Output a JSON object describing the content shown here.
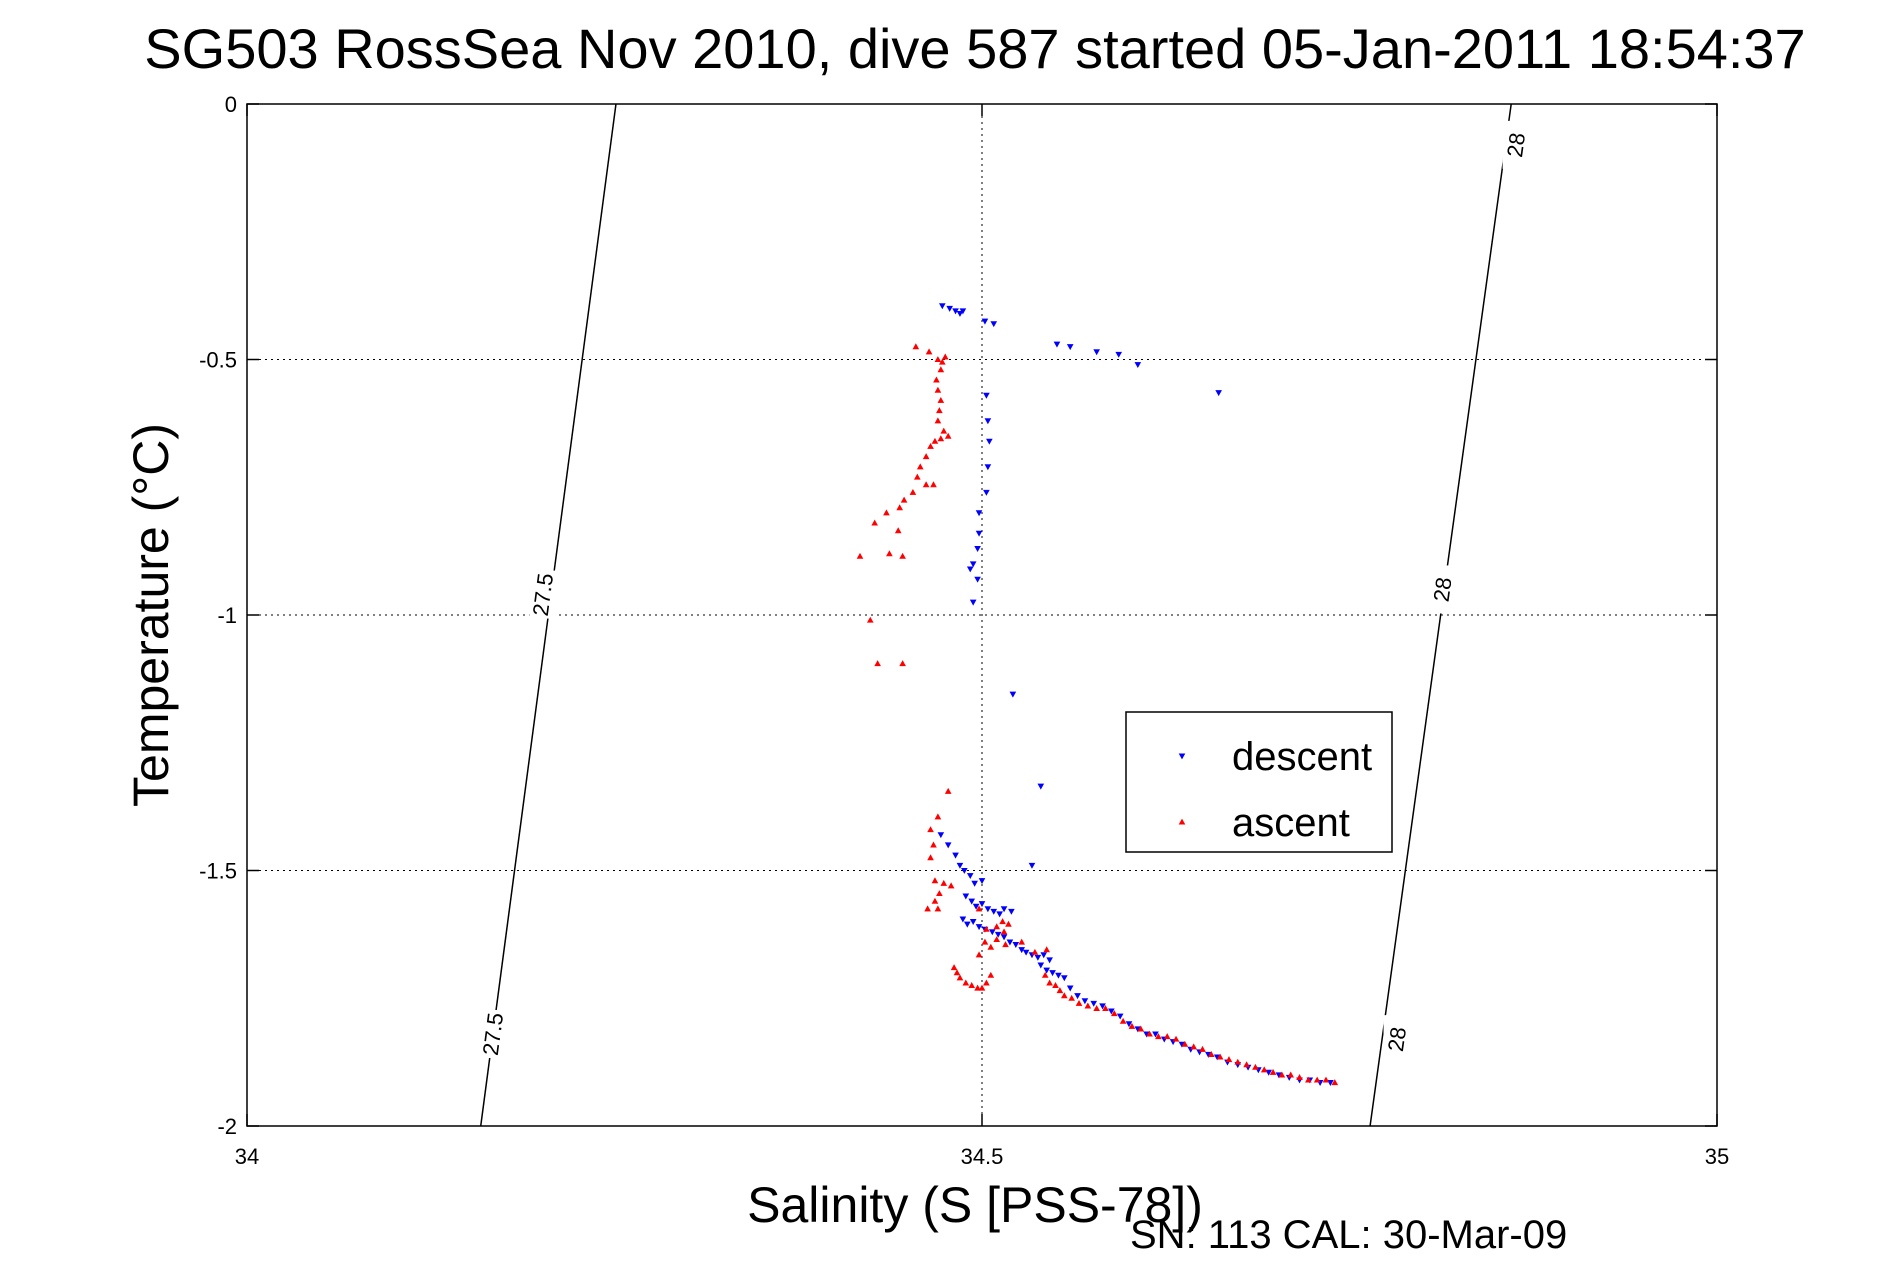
{
  "chart_data": {
    "type": "scatter",
    "title": "SG503 RossSea Nov 2010, dive 587 started 05-Jan-2011 18:54:37",
    "xlabel": "Salinity (S [PSS-78])",
    "ylabel": "Temperature (°C)",
    "xlim": [
      34,
      35
    ],
    "ylim": [
      -2,
      0
    ],
    "x_ticks": [
      "34",
      "34.5",
      "35"
    ],
    "y_ticks": [
      "0",
      "-0.5",
      "-1",
      "-1.5",
      "-2"
    ],
    "grid": true,
    "legend_position": "center-right",
    "footnote": "SN: 113  CAL: 30-Mar-09",
    "density_contours": [
      {
        "level_label": "27.5",
        "line": [
          [
            34.159,
            -2.0
          ],
          [
            34.251,
            0.0
          ]
        ],
        "labels": [
          [
            34.167,
            -1.82
          ],
          [
            34.201,
            -0.96
          ]
        ]
      },
      {
        "level_label": "28",
        "line": [
          [
            34.764,
            -2.0
          ],
          [
            34.86,
            0.0
          ]
        ],
        "labels": [
          [
            34.782,
            -1.83
          ],
          [
            34.813,
            -0.95
          ],
          [
            34.863,
            -0.08
          ]
        ]
      }
    ],
    "series": [
      {
        "name": "descent",
        "color": "#0000ff",
        "marker": "triangle-down",
        "points": [
          [
            34.473,
            -0.395
          ],
          [
            34.478,
            -0.4
          ],
          [
            34.482,
            -0.405
          ],
          [
            34.485,
            -0.41
          ],
          [
            34.487,
            -0.405
          ],
          [
            34.502,
            -0.425
          ],
          [
            34.508,
            -0.43
          ],
          [
            34.551,
            -0.47
          ],
          [
            34.56,
            -0.475
          ],
          [
            34.578,
            -0.485
          ],
          [
            34.593,
            -0.49
          ],
          [
            34.606,
            -0.51
          ],
          [
            34.661,
            -0.565
          ],
          [
            34.503,
            -0.57
          ],
          [
            34.504,
            -0.62
          ],
          [
            34.505,
            -0.66
          ],
          [
            34.504,
            -0.71
          ],
          [
            34.503,
            -0.76
          ],
          [
            34.498,
            -0.8
          ],
          [
            34.498,
            -0.84
          ],
          [
            34.497,
            -0.87
          ],
          [
            34.494,
            -0.9
          ],
          [
            34.492,
            -0.91
          ],
          [
            34.497,
            -0.93
          ],
          [
            34.494,
            -0.975
          ],
          [
            34.521,
            -1.155
          ],
          [
            34.54,
            -1.335
          ],
          [
            34.534,
            -1.49
          ],
          [
            34.472,
            -1.43
          ],
          [
            34.477,
            -1.45
          ],
          [
            34.482,
            -1.47
          ],
          [
            34.485,
            -1.49
          ],
          [
            34.488,
            -1.5
          ],
          [
            34.492,
            -1.51
          ],
          [
            34.495,
            -1.525
          ],
          [
            34.5,
            -1.52
          ],
          [
            34.489,
            -1.55
          ],
          [
            34.493,
            -1.56
          ],
          [
            34.496,
            -1.57
          ],
          [
            34.5,
            -1.565
          ],
          [
            34.504,
            -1.575
          ],
          [
            34.508,
            -1.58
          ],
          [
            34.512,
            -1.585
          ],
          [
            34.515,
            -1.575
          ],
          [
            34.52,
            -1.58
          ],
          [
            34.487,
            -1.595
          ],
          [
            34.49,
            -1.605
          ],
          [
            34.494,
            -1.6
          ],
          [
            34.498,
            -1.61
          ],
          [
            34.502,
            -1.615
          ],
          [
            34.507,
            -1.62
          ],
          [
            34.511,
            -1.625
          ],
          [
            34.515,
            -1.63
          ],
          [
            34.519,
            -1.64
          ],
          [
            34.523,
            -1.645
          ],
          [
            34.527,
            -1.655
          ],
          [
            34.53,
            -1.66
          ],
          [
            34.534,
            -1.665
          ],
          [
            34.538,
            -1.67
          ],
          [
            34.542,
            -1.665
          ],
          [
            34.546,
            -1.675
          ],
          [
            34.54,
            -1.685
          ],
          [
            34.544,
            -1.695
          ],
          [
            34.548,
            -1.7
          ],
          [
            34.552,
            -1.705
          ],
          [
            34.556,
            -1.71
          ],
          [
            34.56,
            -1.73
          ],
          [
            34.565,
            -1.745
          ],
          [
            34.57,
            -1.755
          ],
          [
            34.576,
            -1.76
          ],
          [
            34.582,
            -1.765
          ],
          [
            34.588,
            -1.775
          ],
          [
            34.594,
            -1.785
          ],
          [
            34.6,
            -1.8
          ],
          [
            34.606,
            -1.81
          ],
          [
            34.612,
            -1.82
          ],
          [
            34.618,
            -1.82
          ],
          [
            34.624,
            -1.83
          ],
          [
            34.63,
            -1.835
          ],
          [
            34.636,
            -1.84
          ],
          [
            34.642,
            -1.85
          ],
          [
            34.648,
            -1.855
          ],
          [
            34.654,
            -1.86
          ],
          [
            34.66,
            -1.865
          ],
          [
            34.667,
            -1.875
          ],
          [
            34.674,
            -1.88
          ],
          [
            34.681,
            -1.885
          ],
          [
            34.688,
            -1.89
          ],
          [
            34.695,
            -1.895
          ],
          [
            34.702,
            -1.9
          ],
          [
            34.709,
            -1.905
          ],
          [
            34.716,
            -1.91
          ],
          [
            34.723,
            -1.91
          ],
          [
            34.73,
            -1.915
          ],
          [
            34.737,
            -1.915
          ]
        ]
      },
      {
        "name": "ascent",
        "color": "#ff0000",
        "marker": "triangle-up",
        "points": [
          [
            34.455,
            -0.475
          ],
          [
            34.464,
            -0.485
          ],
          [
            34.47,
            -0.5
          ],
          [
            34.473,
            -0.505
          ],
          [
            34.475,
            -0.495
          ],
          [
            34.472,
            -0.52
          ],
          [
            34.469,
            -0.54
          ],
          [
            34.47,
            -0.56
          ],
          [
            34.472,
            -0.58
          ],
          [
            34.471,
            -0.6
          ],
          [
            34.47,
            -0.62
          ],
          [
            34.474,
            -0.64
          ],
          [
            34.477,
            -0.65
          ],
          [
            34.472,
            -0.655
          ],
          [
            34.468,
            -0.66
          ],
          [
            34.465,
            -0.67
          ],
          [
            34.462,
            -0.69
          ],
          [
            34.458,
            -0.71
          ],
          [
            34.456,
            -0.73
          ],
          [
            34.462,
            -0.745
          ],
          [
            34.467,
            -0.745
          ],
          [
            34.453,
            -0.76
          ],
          [
            34.447,
            -0.775
          ],
          [
            34.444,
            -0.79
          ],
          [
            34.435,
            -0.8
          ],
          [
            34.427,
            -0.82
          ],
          [
            34.443,
            -0.835
          ],
          [
            34.417,
            -0.885
          ],
          [
            34.437,
            -0.88
          ],
          [
            34.446,
            -0.885
          ],
          [
            34.424,
            -1.01
          ],
          [
            34.429,
            -1.095
          ],
          [
            34.446,
            -1.095
          ],
          [
            34.477,
            -1.345
          ],
          [
            34.47,
            -1.395
          ],
          [
            34.465,
            -1.42
          ],
          [
            34.467,
            -1.45
          ],
          [
            34.465,
            -1.475
          ],
          [
            34.468,
            -1.52
          ],
          [
            34.474,
            -1.525
          ],
          [
            34.479,
            -1.53
          ],
          [
            34.471,
            -1.545
          ],
          [
            34.468,
            -1.56
          ],
          [
            34.463,
            -1.575
          ],
          [
            34.47,
            -1.575
          ],
          [
            34.498,
            -1.575
          ],
          [
            34.503,
            -1.615
          ],
          [
            34.51,
            -1.61
          ],
          [
            34.514,
            -1.6
          ],
          [
            34.518,
            -1.605
          ],
          [
            34.515,
            -1.62
          ],
          [
            34.51,
            -1.635
          ],
          [
            34.502,
            -1.64
          ],
          [
            34.506,
            -1.65
          ],
          [
            34.516,
            -1.645
          ],
          [
            34.527,
            -1.64
          ],
          [
            34.498,
            -1.665
          ],
          [
            34.536,
            -1.66
          ],
          [
            34.544,
            -1.655
          ],
          [
            34.481,
            -1.69
          ],
          [
            34.483,
            -1.7
          ],
          [
            34.485,
            -1.71
          ],
          [
            34.489,
            -1.72
          ],
          [
            34.493,
            -1.725
          ],
          [
            34.497,
            -1.73
          ],
          [
            34.5,
            -1.73
          ],
          [
            34.503,
            -1.72
          ],
          [
            34.506,
            -1.705
          ],
          [
            34.543,
            -1.705
          ],
          [
            34.546,
            -1.72
          ],
          [
            34.55,
            -1.725
          ],
          [
            34.553,
            -1.735
          ],
          [
            34.556,
            -1.745
          ],
          [
            34.561,
            -1.75
          ],
          [
            34.566,
            -1.76
          ],
          [
            34.572,
            -1.765
          ],
          [
            34.578,
            -1.77
          ],
          [
            34.584,
            -1.77
          ],
          [
            34.59,
            -1.78
          ],
          [
            34.596,
            -1.795
          ],
          [
            34.602,
            -1.805
          ],
          [
            34.608,
            -1.81
          ],
          [
            34.614,
            -1.82
          ],
          [
            34.62,
            -1.825
          ],
          [
            34.626,
            -1.825
          ],
          [
            34.632,
            -1.83
          ],
          [
            34.638,
            -1.84
          ],
          [
            34.644,
            -1.845
          ],
          [
            34.65,
            -1.85
          ],
          [
            34.656,
            -1.86
          ],
          [
            34.662,
            -1.865
          ],
          [
            34.668,
            -1.87
          ],
          [
            34.674,
            -1.875
          ],
          [
            34.68,
            -1.88
          ],
          [
            34.686,
            -1.885
          ],
          [
            34.692,
            -1.89
          ],
          [
            34.698,
            -1.895
          ],
          [
            34.704,
            -1.9
          ],
          [
            34.71,
            -1.9
          ],
          [
            34.716,
            -1.905
          ],
          [
            34.722,
            -1.91
          ],
          [
            34.728,
            -1.91
          ],
          [
            34.734,
            -1.91
          ],
          [
            34.74,
            -1.915
          ]
        ]
      }
    ]
  }
}
